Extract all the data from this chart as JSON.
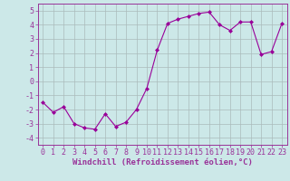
{
  "x": [
    0,
    1,
    2,
    3,
    4,
    5,
    6,
    7,
    8,
    9,
    10,
    11,
    12,
    13,
    14,
    15,
    16,
    17,
    18,
    19,
    20,
    21,
    22,
    23
  ],
  "y": [
    -1.5,
    -2.2,
    -1.8,
    -3.0,
    -3.3,
    -3.4,
    -2.3,
    -3.2,
    -2.9,
    -2.0,
    -0.5,
    2.2,
    4.1,
    4.4,
    4.6,
    4.8,
    4.9,
    4.0,
    3.6,
    4.2,
    4.2,
    1.9,
    2.1,
    4.1
  ],
  "line_color": "#990099",
  "marker": "D",
  "marker_size": 2.0,
  "bg_color": "#cce8e8",
  "grid_color": "#aabbbb",
  "xlabel": "Windchill (Refroidissement éolien,°C)",
  "ylim": [
    -4.5,
    5.5
  ],
  "xlim": [
    -0.5,
    23.5
  ],
  "yticks": [
    -4,
    -3,
    -2,
    -1,
    0,
    1,
    2,
    3,
    4,
    5
  ],
  "xticks": [
    0,
    1,
    2,
    3,
    4,
    5,
    6,
    7,
    8,
    9,
    10,
    11,
    12,
    13,
    14,
    15,
    16,
    17,
    18,
    19,
    20,
    21,
    22,
    23
  ],
  "axis_color": "#993399",
  "tick_color": "#993399",
  "label_fontsize": 6.5,
  "tick_fontsize": 6.0,
  "xlabel_fontsize": 6.5
}
